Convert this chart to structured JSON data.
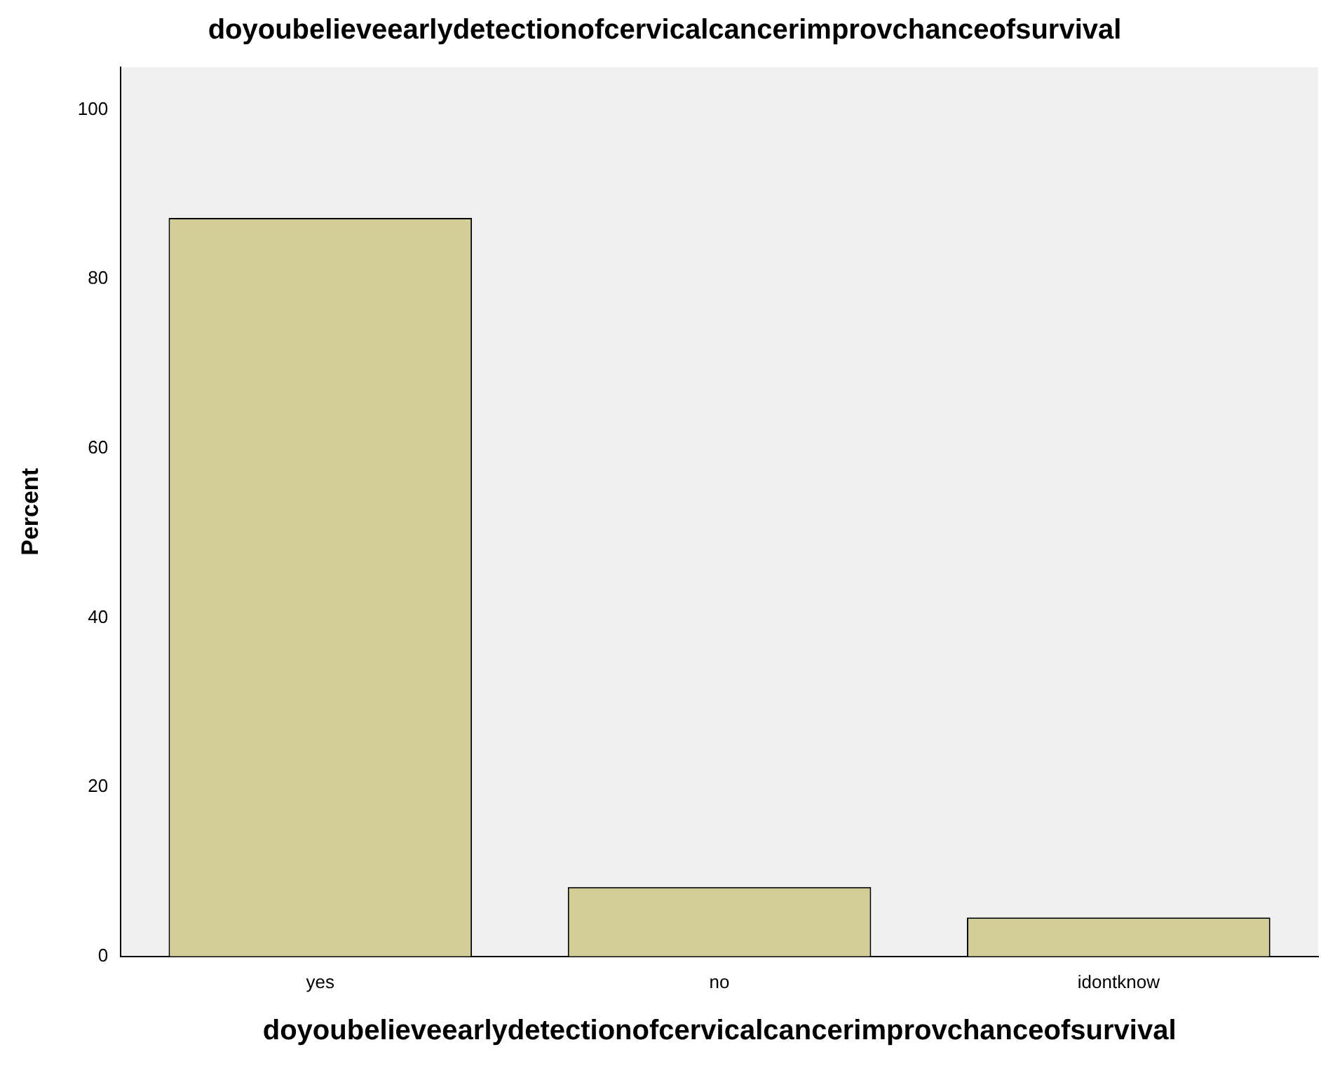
{
  "chart_data": {
    "type": "bar",
    "title": "doyoubelieveearlydetectionofcervicalcancerimprovchanceofsurvival",
    "xlabel": "doyoubelieveearlydetectionofcervicalcancerimprovchanceofsurvival",
    "ylabel": "Percent",
    "categories": [
      "yes",
      "no",
      "idontknow"
    ],
    "values": [
      87.2,
      8.2,
      4.6
    ],
    "color": "#d3ce97",
    "ylim": [
      0,
      105
    ],
    "yticks": [
      0,
      20,
      40,
      60,
      80,
      100
    ],
    "grid": false,
    "legend": false
  }
}
